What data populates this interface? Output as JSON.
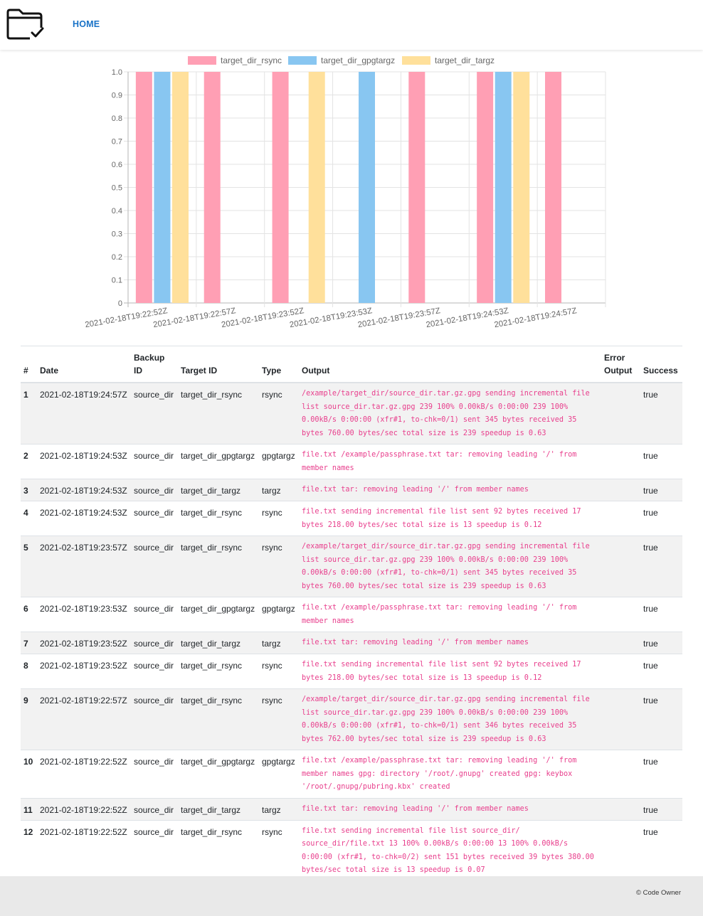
{
  "nav": {
    "logo_icon": "folder-check-icon",
    "home_label": "HOME"
  },
  "chart_data": {
    "type": "bar",
    "categories": [
      "2021-02-18T19:22:52Z",
      "2021-02-18T19:22:57Z",
      "2021-02-18T19:23:52Z",
      "2021-02-18T19:23:53Z",
      "2021-02-18T19:23:57Z",
      "2021-02-18T19:24:53Z",
      "2021-02-18T19:24:57Z"
    ],
    "series": [
      {
        "name": "target_dir_rsync",
        "color": "#ff9fb4",
        "values": [
          1,
          1,
          1,
          0,
          1,
          1,
          1
        ]
      },
      {
        "name": "target_dir_gpgtargz",
        "color": "#88c6f1",
        "values": [
          1,
          0,
          0,
          1,
          0,
          1,
          0
        ]
      },
      {
        "name": "target_dir_targz",
        "color": "#ffe09b",
        "values": [
          1,
          0,
          1,
          0,
          0,
          1,
          0
        ]
      }
    ],
    "ylim": [
      0,
      1.0
    ],
    "yticks": [
      "0",
      "0.1",
      "0.2",
      "0.3",
      "0.4",
      "0.5",
      "0.6",
      "0.7",
      "0.8",
      "0.9",
      "1.0"
    ],
    "grid": true,
    "legend": "top"
  },
  "table": {
    "headers": {
      "num": "#",
      "date": "Date",
      "backup_id": "Backup ID",
      "target_id": "Target ID",
      "type": "Type",
      "output": "Output",
      "error_output": "Error Output",
      "success": "Success"
    },
    "rows": [
      {
        "num": "1",
        "date": "2021-02-18T19:24:57Z",
        "backup_id": "source_dir",
        "target_id": "target_dir_rsync",
        "type": "rsync",
        "output": "/example/target_dir/source_dir.tar.gz.gpg sending incremental file list source_dir.tar.gz.gpg  239 100% 0.00kB/s 0:00:00  239 100% 0.00kB/s 0:00:00 (xfr#1, to-chk=0/1) sent 345 bytes received 35 bytes 760.00 bytes/sec total size is 239 speedup is 0.63",
        "error_output": "",
        "success": "true"
      },
      {
        "num": "2",
        "date": "2021-02-18T19:24:53Z",
        "backup_id": "source_dir",
        "target_id": "target_dir_gpgtargz",
        "type": "gpgtargz",
        "output": "file.txt /example/passphrase.txt tar: removing leading '/' from member names",
        "error_output": "",
        "success": "true"
      },
      {
        "num": "3",
        "date": "2021-02-18T19:24:53Z",
        "backup_id": "source_dir",
        "target_id": "target_dir_targz",
        "type": "targz",
        "output": "file.txt tar: removing leading '/' from member names",
        "error_output": "",
        "success": "true"
      },
      {
        "num": "4",
        "date": "2021-02-18T19:24:53Z",
        "backup_id": "source_dir",
        "target_id": "target_dir_rsync",
        "type": "rsync",
        "output": "file.txt sending incremental file list sent 92 bytes received 17 bytes 218.00 bytes/sec total size is 13 speedup is 0.12",
        "error_output": "",
        "success": "true"
      },
      {
        "num": "5",
        "date": "2021-02-18T19:23:57Z",
        "backup_id": "source_dir",
        "target_id": "target_dir_rsync",
        "type": "rsync",
        "output": "/example/target_dir/source_dir.tar.gz.gpg sending incremental file list source_dir.tar.gz.gpg  239 100% 0.00kB/s 0:00:00  239 100% 0.00kB/s 0:00:00 (xfr#1, to-chk=0/1) sent 345 bytes received 35 bytes 760.00 bytes/sec total size is 239 speedup is 0.63",
        "error_output": "",
        "success": "true"
      },
      {
        "num": "6",
        "date": "2021-02-18T19:23:53Z",
        "backup_id": "source_dir",
        "target_id": "target_dir_gpgtargz",
        "type": "gpgtargz",
        "output": "file.txt /example/passphrase.txt tar: removing leading '/' from member names",
        "error_output": "",
        "success": "true"
      },
      {
        "num": "7",
        "date": "2021-02-18T19:23:52Z",
        "backup_id": "source_dir",
        "target_id": "target_dir_targz",
        "type": "targz",
        "output": "file.txt tar: removing leading '/' from member names",
        "error_output": "",
        "success": "true"
      },
      {
        "num": "8",
        "date": "2021-02-18T19:23:52Z",
        "backup_id": "source_dir",
        "target_id": "target_dir_rsync",
        "type": "rsync",
        "output": "file.txt sending incremental file list sent 92 bytes received 17 bytes 218.00 bytes/sec total size is 13 speedup is 0.12",
        "error_output": "",
        "success": "true"
      },
      {
        "num": "9",
        "date": "2021-02-18T19:22:57Z",
        "backup_id": "source_dir",
        "target_id": "target_dir_rsync",
        "type": "rsync",
        "output": "/example/target_dir/source_dir.tar.gz.gpg sending incremental file list source_dir.tar.gz.gpg  239 100% 0.00kB/s 0:00:00  239 100% 0.00kB/s 0:00:00 (xfr#1, to-chk=0/1) sent 346 bytes received 35 bytes 762.00 bytes/sec total size is 239 speedup is 0.63",
        "error_output": "",
        "success": "true"
      },
      {
        "num": "10",
        "date": "2021-02-18T19:22:52Z",
        "backup_id": "source_dir",
        "target_id": "target_dir_gpgtargz",
        "type": "gpgtargz",
        "output": "file.txt /example/passphrase.txt tar: removing leading '/' from member names gpg: directory '/root/.gnupg' created gpg: keybox '/root/.gnupg/pubring.kbx' created",
        "error_output": "",
        "success": "true"
      },
      {
        "num": "11",
        "date": "2021-02-18T19:22:52Z",
        "backup_id": "source_dir",
        "target_id": "target_dir_targz",
        "type": "targz",
        "output": "file.txt tar: removing leading '/' from member names",
        "error_output": "",
        "success": "true"
      },
      {
        "num": "12",
        "date": "2021-02-18T19:22:52Z",
        "backup_id": "source_dir",
        "target_id": "target_dir_rsync",
        "type": "rsync",
        "output": "file.txt sending incremental file list source_dir/ source_dir/file.txt  13 100% 0.00kB/s 0:00:00  13 100% 0.00kB/s 0:00:00 (xfr#1, to-chk=0/2) sent 151 bytes received 39 bytes 380.00 bytes/sec total size is 13 speedup is 0.07",
        "error_output": "",
        "success": "true"
      }
    ]
  },
  "footer": {
    "copyright": "© Code Owner"
  }
}
